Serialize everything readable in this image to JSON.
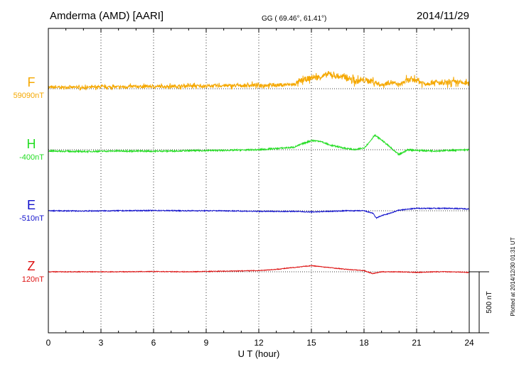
{
  "header": {
    "station": "Amderma (AMD)  [AARI]",
    "coords": "GG ( 69.46°,  61.41°)",
    "date": "2014/11/29"
  },
  "plotted_note": "Plotted at 2014/12/30 01:31  UT",
  "scale_bar": {
    "label": "500 nT",
    "value_nT": 500
  },
  "colors": {
    "F": "#f5a800",
    "H": "#22dd22",
    "E": "#1010cc",
    "Z": "#dd1111",
    "axis": "#000000",
    "grid": "#000000"
  },
  "chart_data": {
    "type": "line",
    "xlabel": "U T (hour)",
    "xlim": [
      0,
      24
    ],
    "x_ticks": [
      "0",
      "3",
      "6",
      "9",
      "12",
      "15",
      "18",
      "21",
      "24"
    ],
    "grid": "vertical dotted every 3 h",
    "series": [
      {
        "name": "F",
        "baseline_label": "59090nT",
        "color": "#f5a800",
        "x": [
          0,
          1,
          2,
          3,
          4,
          5,
          6,
          7,
          8,
          9,
          10,
          11,
          12,
          13,
          14,
          14.5,
          15,
          15.5,
          16,
          16.5,
          17,
          17.5,
          18,
          18.5,
          19,
          19.5,
          20,
          20.5,
          21,
          21.5,
          22,
          22.5,
          23,
          23.5,
          24
        ],
        "values": [
          10,
          12,
          10,
          14,
          15,
          18,
          18,
          20,
          22,
          22,
          25,
          25,
          30,
          30,
          35,
          70,
          90,
          95,
          120,
          100,
          95,
          60,
          70,
          60,
          30,
          55,
          30,
          70,
          70,
          40,
          55,
          40,
          55,
          50,
          40
        ],
        "noise_nT": 45
      },
      {
        "name": "H",
        "baseline_label": "-400nT",
        "color": "#22dd22",
        "x": [
          0,
          2,
          4,
          6,
          8,
          10,
          12,
          13,
          14,
          14.5,
          15,
          15.5,
          16,
          16.5,
          17,
          17.5,
          18,
          18.3,
          18.6,
          19,
          19.5,
          19.8,
          20,
          20.5,
          21,
          22,
          23,
          24
        ],
        "values": [
          -10,
          -15,
          -10,
          -12,
          -8,
          -5,
          0,
          10,
          20,
          50,
          75,
          70,
          40,
          25,
          10,
          0,
          15,
          60,
          120,
          80,
          20,
          -20,
          -40,
          0,
          -5,
          -10,
          -5,
          0
        ],
        "noise_nT": 12
      },
      {
        "name": "E",
        "baseline_label": "-510nT",
        "color": "#1010cc",
        "x": [
          0,
          2,
          4,
          6,
          8,
          10,
          12,
          14,
          15,
          16,
          17,
          18,
          18.5,
          18.7,
          19,
          19.5,
          20,
          21,
          22,
          23,
          24
        ],
        "values": [
          0,
          -2,
          0,
          2,
          0,
          0,
          -5,
          -5,
          -10,
          -5,
          0,
          0,
          -20,
          -60,
          -40,
          -20,
          5,
          20,
          20,
          20,
          15
        ],
        "noise_nT": 8
      },
      {
        "name": "Z",
        "baseline_label": "120nT",
        "color": "#dd1111",
        "x": [
          0,
          2,
          4,
          6,
          8,
          10,
          12,
          13,
          14,
          15,
          16,
          17,
          18,
          18.5,
          19,
          20,
          21,
          22,
          23,
          24
        ],
        "values": [
          0,
          0,
          0,
          2,
          0,
          5,
          10,
          20,
          35,
          50,
          35,
          20,
          10,
          -15,
          0,
          0,
          -5,
          0,
          0,
          -5
        ],
        "noise_nT": 6
      }
    ]
  }
}
